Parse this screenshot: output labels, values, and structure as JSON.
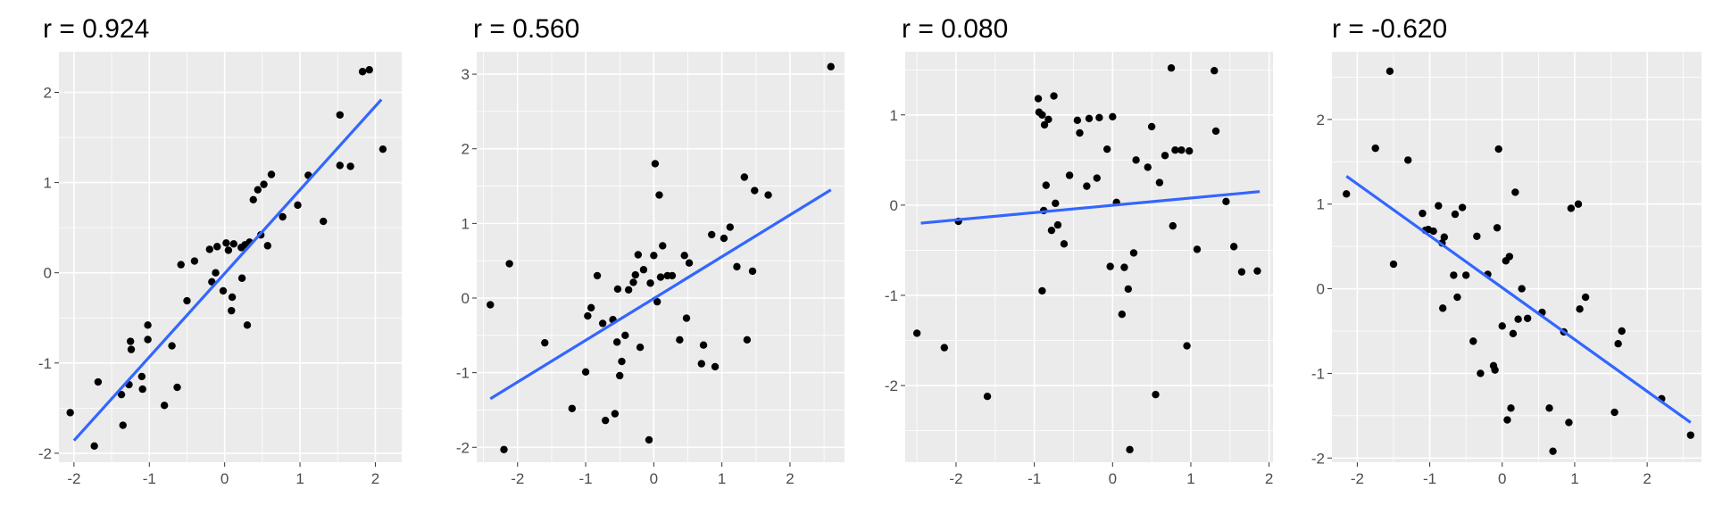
{
  "colors": {
    "panel_bg": "#ebebeb",
    "grid": "#ffffff",
    "point": "#000000",
    "fit_line": "#3366ff",
    "tick_text": "#4d4d4d"
  },
  "chart_data": [
    {
      "type": "scatter",
      "title": "r = 0.924",
      "xlabel": "",
      "ylabel": "",
      "xlim": [
        -2.2,
        2.35
      ],
      "ylim": [
        -2.1,
        2.45
      ],
      "x_ticks": [
        -2,
        -1,
        0,
        1,
        2
      ],
      "x_tick_labels": [
        "-2",
        "-1",
        "0",
        "1",
        "2"
      ],
      "y_ticks": [
        -2,
        -1,
        0,
        1,
        2
      ],
      "y_tick_labels": [
        "-2",
        "-1",
        "0",
        "1",
        "2"
      ],
      "grid": true,
      "fit_line": {
        "x": [
          -2.0,
          2.08
        ],
        "y": [
          -1.86,
          1.92
        ]
      },
      "points": [
        [
          -2.05,
          -1.55
        ],
        [
          -1.73,
          -1.92
        ],
        [
          -1.68,
          -1.21
        ],
        [
          -1.37,
          -1.35
        ],
        [
          -1.35,
          -1.69
        ],
        [
          -1.27,
          -1.24
        ],
        [
          -1.25,
          -0.76
        ],
        [
          -1.24,
          -0.85
        ],
        [
          -1.1,
          -1.15
        ],
        [
          -1.09,
          -1.29
        ],
        [
          -1.02,
          -0.74
        ],
        [
          -1.02,
          -0.58
        ],
        [
          -0.8,
          -1.47
        ],
        [
          -0.7,
          -0.81
        ],
        [
          -0.63,
          -1.27
        ],
        [
          -0.58,
          0.09
        ],
        [
          -0.5,
          -0.31
        ],
        [
          -0.4,
          0.13
        ],
        [
          -0.2,
          0.26
        ],
        [
          -0.17,
          -0.1
        ],
        [
          -0.12,
          0.0
        ],
        [
          -0.1,
          0.29
        ],
        [
          -0.02,
          -0.2
        ],
        [
          0.02,
          0.33
        ],
        [
          0.05,
          0.25
        ],
        [
          0.09,
          -0.42
        ],
        [
          0.1,
          -0.27
        ],
        [
          0.12,
          0.32
        ],
        [
          0.22,
          0.28
        ],
        [
          0.23,
          -0.06
        ],
        [
          0.27,
          0.31
        ],
        [
          0.3,
          -0.58
        ],
        [
          0.33,
          0.34
        ],
        [
          0.38,
          0.81
        ],
        [
          0.44,
          0.92
        ],
        [
          0.48,
          0.42
        ],
        [
          0.52,
          0.98
        ],
        [
          0.57,
          0.3
        ],
        [
          0.62,
          1.09
        ],
        [
          0.77,
          0.62
        ],
        [
          0.97,
          0.75
        ],
        [
          1.11,
          1.08
        ],
        [
          1.31,
          0.57
        ],
        [
          1.53,
          1.75
        ],
        [
          1.53,
          1.19
        ],
        [
          1.67,
          1.18
        ],
        [
          1.83,
          2.23
        ],
        [
          1.92,
          2.25
        ],
        [
          2.1,
          1.37
        ]
      ]
    },
    {
      "type": "scatter",
      "title": "r = 0.560",
      "xlabel": "",
      "ylabel": "",
      "xlim": [
        -2.6,
        2.8
      ],
      "ylim": [
        -2.2,
        3.3
      ],
      "x_ticks": [
        -2,
        -1,
        0,
        1,
        2
      ],
      "x_tick_labels": [
        "-2",
        "-1",
        "0",
        "1",
        "2"
      ],
      "y_ticks": [
        -2,
        -1,
        0,
        1,
        2,
        3
      ],
      "y_tick_labels": [
        "-2",
        "-1",
        "0",
        "1",
        "2",
        "3"
      ],
      "grid": true,
      "fit_line": {
        "x": [
          -2.4,
          2.6
        ],
        "y": [
          -1.35,
          1.45
        ]
      },
      "points": [
        [
          -2.4,
          -0.09
        ],
        [
          -2.2,
          -2.03
        ],
        [
          -2.12,
          0.46
        ],
        [
          -1.6,
          -0.6
        ],
        [
          -1.2,
          -1.48
        ],
        [
          -1.0,
          -0.99
        ],
        [
          -0.97,
          -0.24
        ],
        [
          -0.92,
          -0.13
        ],
        [
          -0.83,
          0.3
        ],
        [
          -0.75,
          -0.34
        ],
        [
          -0.71,
          -1.64
        ],
        [
          -0.6,
          -0.29
        ],
        [
          -0.57,
          -1.55
        ],
        [
          -0.54,
          -0.59
        ],
        [
          -0.53,
          0.12
        ],
        [
          -0.5,
          -1.04
        ],
        [
          -0.47,
          -0.85
        ],
        [
          -0.42,
          -0.5
        ],
        [
          -0.37,
          0.11
        ],
        [
          -0.3,
          0.21
        ],
        [
          -0.27,
          0.31
        ],
        [
          -0.23,
          0.58
        ],
        [
          -0.2,
          -0.66
        ],
        [
          -0.15,
          0.38
        ],
        [
          -0.07,
          -1.9
        ],
        [
          -0.05,
          0.2
        ],
        [
          0.0,
          0.57
        ],
        [
          0.02,
          1.8
        ],
        [
          0.05,
          -0.05
        ],
        [
          0.08,
          1.38
        ],
        [
          0.1,
          0.28
        ],
        [
          0.13,
          0.7
        ],
        [
          0.2,
          0.3
        ],
        [
          0.27,
          0.3
        ],
        [
          0.38,
          -0.56
        ],
        [
          0.45,
          0.57
        ],
        [
          0.48,
          -0.27
        ],
        [
          0.52,
          0.47
        ],
        [
          0.7,
          -0.88
        ],
        [
          0.73,
          -0.63
        ],
        [
          0.85,
          0.85
        ],
        [
          0.9,
          -0.92
        ],
        [
          1.03,
          0.8
        ],
        [
          1.12,
          0.95
        ],
        [
          1.22,
          0.42
        ],
        [
          1.33,
          1.62
        ],
        [
          1.37,
          -0.56
        ],
        [
          1.45,
          0.36
        ],
        [
          1.48,
          1.44
        ],
        [
          1.68,
          1.38
        ],
        [
          2.6,
          3.1
        ]
      ]
    },
    {
      "type": "scatter",
      "title": "r = 0.080",
      "xlabel": "",
      "ylabel": "",
      "xlim": [
        -2.65,
        2.05
      ],
      "ylim": [
        -2.85,
        1.7
      ],
      "x_ticks": [
        -2,
        -1,
        0,
        1,
        2
      ],
      "x_tick_labels": [
        "-2",
        "-1",
        "0",
        "1",
        "2"
      ],
      "y_ticks": [
        -2,
        -1,
        0,
        1
      ],
      "y_tick_labels": [
        "-2",
        "-1",
        "0",
        "1"
      ],
      "grid": true,
      "fit_line": {
        "x": [
          -2.45,
          1.88
        ],
        "y": [
          -0.2,
          0.15
        ]
      },
      "points": [
        [
          -2.5,
          -1.42
        ],
        [
          -2.15,
          -1.58
        ],
        [
          -1.97,
          -0.18
        ],
        [
          -1.6,
          -2.12
        ],
        [
          -0.95,
          1.18
        ],
        [
          -0.94,
          1.03
        ],
        [
          -0.9,
          1.0
        ],
        [
          -0.9,
          -0.95
        ],
        [
          -0.88,
          -0.06
        ],
        [
          -0.87,
          0.89
        ],
        [
          -0.85,
          0.22
        ],
        [
          -0.82,
          0.95
        ],
        [
          -0.78,
          -0.28
        ],
        [
          -0.75,
          1.21
        ],
        [
          -0.73,
          0.02
        ],
        [
          -0.7,
          -0.22
        ],
        [
          -0.62,
          -0.43
        ],
        [
          -0.55,
          0.33
        ],
        [
          -0.45,
          0.94
        ],
        [
          -0.42,
          0.8
        ],
        [
          -0.33,
          0.21
        ],
        [
          -0.3,
          0.96
        ],
        [
          -0.2,
          0.3
        ],
        [
          -0.17,
          0.97
        ],
        [
          -0.07,
          0.62
        ],
        [
          -0.03,
          -0.68
        ],
        [
          0.0,
          0.98
        ],
        [
          0.05,
          0.03
        ],
        [
          0.12,
          -1.21
        ],
        [
          0.15,
          -0.69
        ],
        [
          0.2,
          -0.93
        ],
        [
          0.22,
          -2.71
        ],
        [
          0.27,
          -0.53
        ],
        [
          0.3,
          0.5
        ],
        [
          0.45,
          0.42
        ],
        [
          0.5,
          0.87
        ],
        [
          0.55,
          -2.1
        ],
        [
          0.6,
          0.25
        ],
        [
          0.67,
          0.55
        ],
        [
          0.75,
          1.52
        ],
        [
          0.77,
          -0.23
        ],
        [
          0.8,
          0.61
        ],
        [
          0.88,
          0.61
        ],
        [
          0.95,
          -1.56
        ],
        [
          0.98,
          0.6
        ],
        [
          1.08,
          -0.49
        ],
        [
          1.3,
          1.49
        ],
        [
          1.32,
          0.82
        ],
        [
          1.45,
          0.04
        ],
        [
          1.55,
          -0.46
        ],
        [
          1.65,
          -0.74
        ],
        [
          1.85,
          -0.73
        ]
      ]
    },
    {
      "type": "scatter",
      "title": "r = -0.620",
      "xlabel": "",
      "ylabel": "",
      "xlim": [
        -2.35,
        2.75
      ],
      "ylim": [
        -2.05,
        2.8
      ],
      "x_ticks": [
        -2,
        -1,
        0,
        1,
        2
      ],
      "x_tick_labels": [
        "-2",
        "-1",
        "0",
        "1",
        "2"
      ],
      "y_ticks": [
        -2,
        -1,
        0,
        1,
        2
      ],
      "y_tick_labels": [
        "-2",
        "-1",
        "0",
        "1",
        "2"
      ],
      "grid": true,
      "fit_line": {
        "x": [
          -2.15,
          2.6
        ],
        "y": [
          1.33,
          -1.58
        ]
      },
      "points": [
        [
          -2.15,
          1.12
        ],
        [
          -1.75,
          1.66
        ],
        [
          -1.55,
          2.57
        ],
        [
          -1.5,
          0.29
        ],
        [
          -1.3,
          1.52
        ],
        [
          -1.1,
          0.89
        ],
        [
          -1.06,
          0.69
        ],
        [
          -1.02,
          0.7
        ],
        [
          -0.95,
          0.68
        ],
        [
          -0.88,
          0.98
        ],
        [
          -0.83,
          0.54
        ],
        [
          -0.82,
          -0.23
        ],
        [
          -0.8,
          0.61
        ],
        [
          -0.67,
          0.16
        ],
        [
          -0.65,
          0.88
        ],
        [
          -0.62,
          -0.1
        ],
        [
          -0.55,
          0.96
        ],
        [
          -0.5,
          0.16
        ],
        [
          -0.4,
          -0.62
        ],
        [
          -0.35,
          0.62
        ],
        [
          -0.3,
          -1.0
        ],
        [
          -0.2,
          0.17
        ],
        [
          -0.12,
          -0.91
        ],
        [
          -0.1,
          -0.96
        ],
        [
          -0.07,
          0.72
        ],
        [
          -0.05,
          1.65
        ],
        [
          0.0,
          -0.44
        ],
        [
          0.05,
          0.33
        ],
        [
          0.07,
          -1.55
        ],
        [
          0.1,
          0.38
        ],
        [
          0.12,
          -1.41
        ],
        [
          0.15,
          -0.53
        ],
        [
          0.18,
          1.14
        ],
        [
          0.22,
          -0.36
        ],
        [
          0.27,
          0.0
        ],
        [
          0.35,
          -0.35
        ],
        [
          0.55,
          -0.28
        ],
        [
          0.65,
          -1.41
        ],
        [
          0.7,
          -1.92
        ],
        [
          0.85,
          -0.51
        ],
        [
          0.92,
          -1.58
        ],
        [
          0.95,
          0.95
        ],
        [
          1.05,
          1.0
        ],
        [
          1.07,
          -0.24
        ],
        [
          1.15,
          -0.1
        ],
        [
          1.55,
          -1.46
        ],
        [
          1.6,
          -0.65
        ],
        [
          1.65,
          -0.5
        ],
        [
          2.2,
          -1.3
        ],
        [
          2.6,
          -1.73
        ]
      ]
    }
  ]
}
